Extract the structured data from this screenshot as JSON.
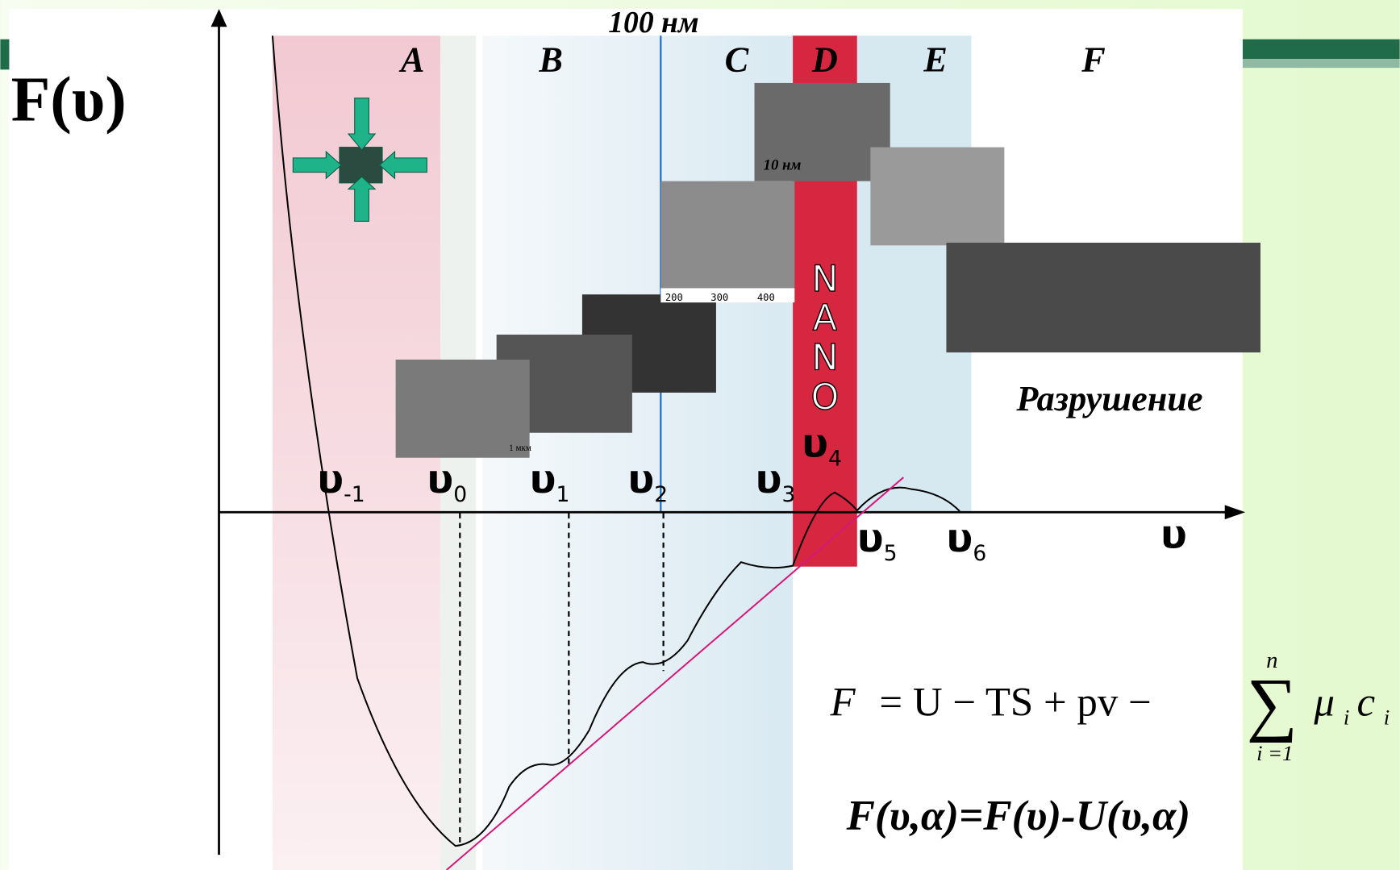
{
  "slide": {
    "y_axis_label": "F(υ)",
    "x_axis_label": "υ",
    "scale_label": "100 нм",
    "regions": [
      "A",
      "B",
      "C",
      "D",
      "E",
      "F"
    ],
    "nano_label": "NANO",
    "fracture_label": "Разрушение",
    "points": [
      {
        "symbol": "υ",
        "index": "-1"
      },
      {
        "symbol": "υ",
        "index": "0"
      },
      {
        "symbol": "υ",
        "index": "1"
      },
      {
        "symbol": "υ",
        "index": "2"
      },
      {
        "symbol": "υ",
        "index": "3"
      },
      {
        "symbol": "υ",
        "index": "4"
      },
      {
        "symbol": "υ",
        "index": "5"
      },
      {
        "symbol": "υ",
        "index": "6"
      }
    ],
    "photo_labels": {
      "scale_10nm": "10 нм",
      "scale_1um": "1 мкм",
      "afm_ticks": [
        "200",
        "300",
        "400"
      ]
    },
    "formula_1": {
      "lhs": "F",
      "rhs": "= U − TS + pv −",
      "sum_symbol": "∑",
      "sum_upper": "n",
      "sum_lower": "i =1",
      "term": "μ",
      "term_sub": "i",
      "term2": "c",
      "term2_sub": "i"
    },
    "formula_2": "F(υ,α)=F(υ)-U(υ,α)"
  }
}
